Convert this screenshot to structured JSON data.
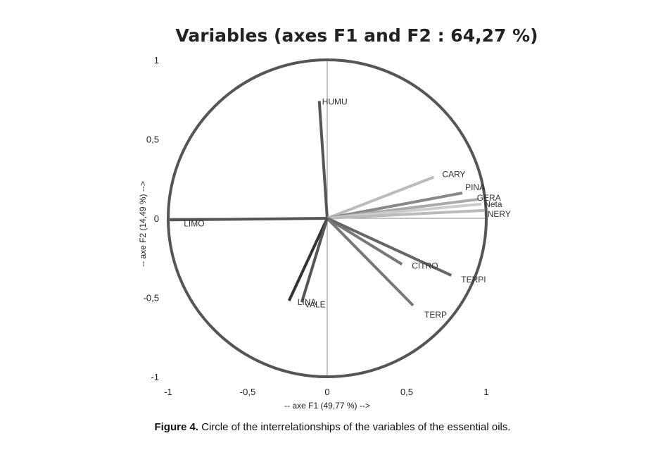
{
  "chart_data": {
    "type": "scatter",
    "subtype": "correlation-circle",
    "title": "Variables (axes F1 and F2 : 64,27 %)",
    "xlabel": "-- axe F1 (49,77 %) -->",
    "ylabel": "-- axe F2 (14,49 %) -->",
    "xlim": [
      -1,
      1
    ],
    "ylim": [
      -1,
      1
    ],
    "xticks": [
      "-1",
      "-0,5",
      "0",
      "0,5",
      "1"
    ],
    "yticks": [
      "1",
      "0,5",
      "0",
      "-0,5",
      "-1"
    ],
    "variables": [
      {
        "name": "HUMU",
        "x": -0.05,
        "y": 0.74,
        "color": "#555555"
      },
      {
        "name": "CARY",
        "x": 0.67,
        "y": 0.26,
        "color": "#bbbbbb"
      },
      {
        "name": "PINA",
        "x": 0.85,
        "y": 0.16,
        "color": "#888888"
      },
      {
        "name": "GERA",
        "x": 0.95,
        "y": 0.12,
        "color": "#aaaaaa"
      },
      {
        "name": "Neta",
        "x": 0.97,
        "y": 0.09,
        "color": "#cccccc"
      },
      {
        "name": "NERY",
        "x": 0.99,
        "y": 0.05,
        "color": "#bbbbbb"
      },
      {
        "name": "LIMO",
        "x": -0.99,
        "y": -0.01,
        "color": "#555555"
      },
      {
        "name": "CITRO",
        "x": 0.47,
        "y": -0.29,
        "color": "#777777"
      },
      {
        "name": "TERPI",
        "x": 0.78,
        "y": -0.36,
        "color": "#666666"
      },
      {
        "name": "TERP",
        "x": 0.54,
        "y": -0.55,
        "color": "#777777"
      },
      {
        "name": "LINA",
        "x": -0.24,
        "y": -0.52,
        "color": "#333333"
      },
      {
        "name": "VALE",
        "x": -0.16,
        "y": -0.53,
        "color": "#555555"
      }
    ]
  },
  "caption": {
    "label": "Figure 4.",
    "text": " Circle of the interrelationships of the variables of the essential oils."
  }
}
